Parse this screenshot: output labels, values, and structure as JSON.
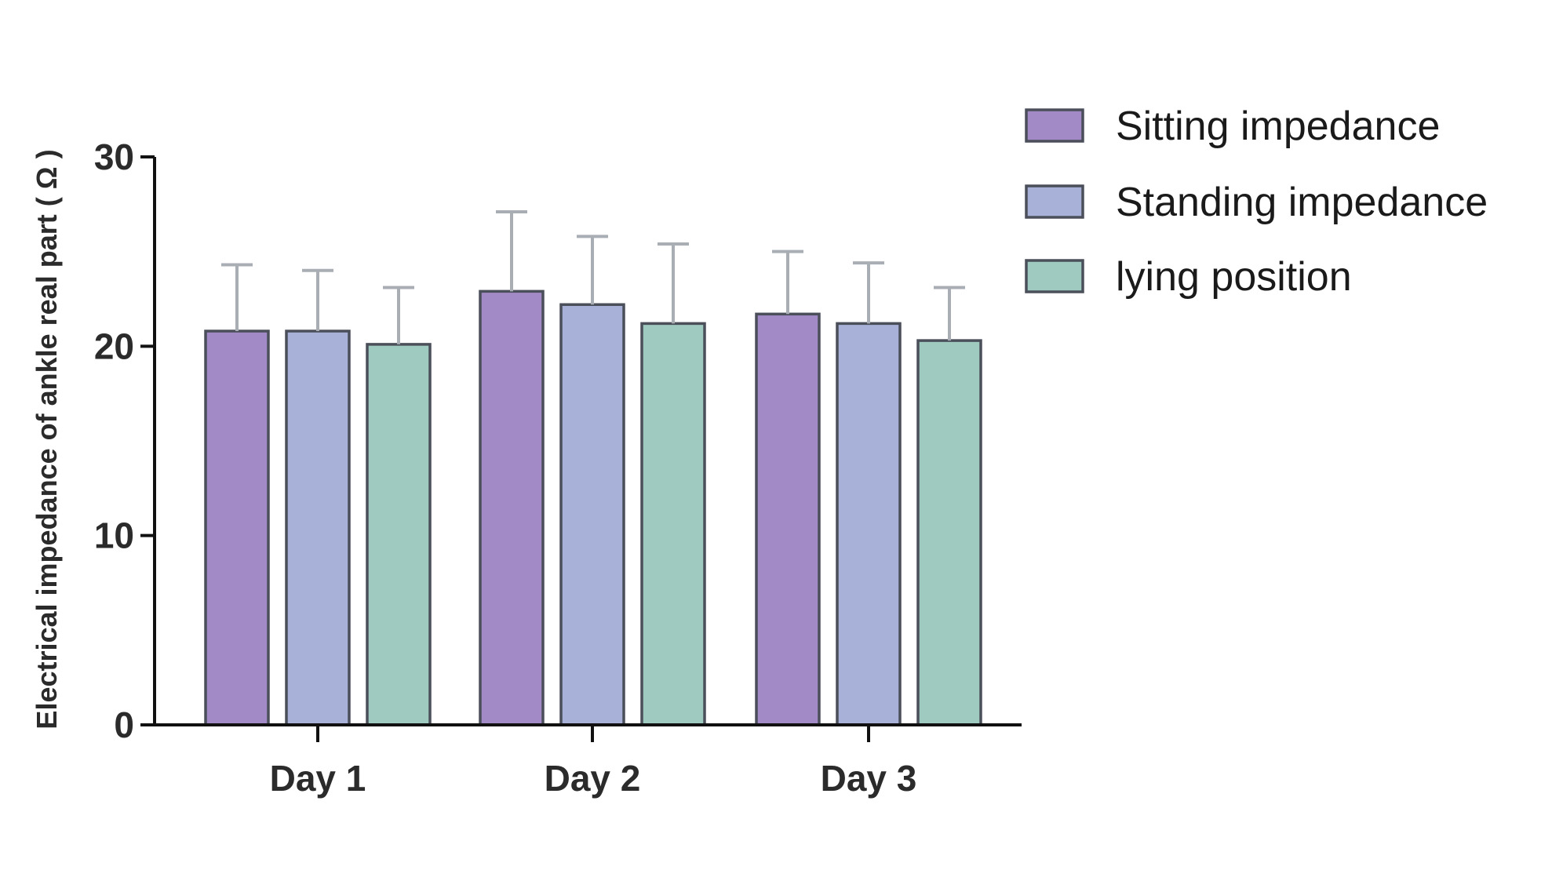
{
  "chart_data": {
    "type": "bar",
    "title": "",
    "xlabel": "",
    "ylabel": "Electrical impedance of ankle real part ( Ω )",
    "categories": [
      "Day 1",
      "Day 2",
      "Day 3"
    ],
    "ylim": [
      0,
      30
    ],
    "yticks": [
      0,
      10,
      20,
      30
    ],
    "grid": false,
    "legend_position": "top-right",
    "series": [
      {
        "name": "Sitting impedance",
        "color": "#a28ac6",
        "values": [
          20.8,
          22.9,
          21.7
        ],
        "error": [
          3.5,
          4.2,
          3.3
        ]
      },
      {
        "name": "Standing impedance",
        "color": "#a8b2d8",
        "values": [
          20.8,
          22.2,
          21.2
        ],
        "error": [
          3.2,
          3.6,
          3.2
        ]
      },
      {
        "name": "lying position",
        "color": "#9ecabf",
        "values": [
          20.1,
          21.2,
          20.3
        ],
        "error": [
          3.0,
          4.2,
          2.8
        ]
      }
    ]
  }
}
